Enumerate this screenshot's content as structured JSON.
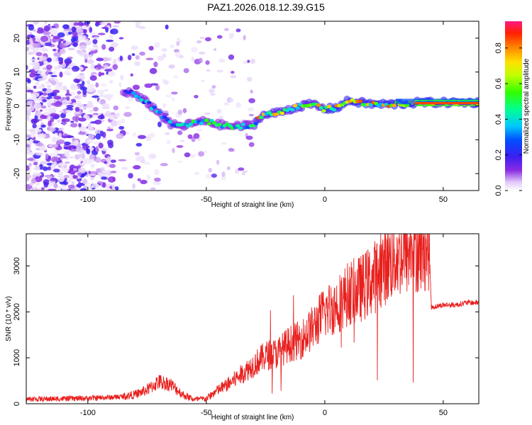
{
  "title": "PAZ1.2026.018.12.39.G15",
  "chart_data": [
    {
      "type": "heatmap",
      "title": "PAZ1.2026.018.12.39.G15",
      "xlabel": "Height of straight line (km)",
      "ylabel": "Frequency (Hz)",
      "xlim": [
        -126,
        65
      ],
      "ylim": [
        -25,
        25
      ],
      "xticks": [
        -100,
        -50,
        0,
        50
      ],
      "yticks": [
        -20,
        -10,
        0,
        10,
        20
      ],
      "colorbar": {
        "label": "Normalized spectral amplitude",
        "range": [
          0,
          0.95
        ],
        "ticks": [
          0.0,
          0.2,
          0.4,
          0.6,
          0.8
        ]
      },
      "ridge": {
        "description_points_km_hz": [
          [
            -82,
            4
          ],
          [
            -75,
            1
          ],
          [
            -70,
            -2
          ],
          [
            -65,
            -5.5
          ],
          [
            -60,
            -6
          ],
          [
            -55,
            -5
          ],
          [
            -50,
            -4.5
          ],
          [
            -45,
            -5.5
          ],
          [
            -40,
            -6
          ],
          [
            -35,
            -6
          ],
          [
            -30,
            -5.5
          ],
          [
            -27,
            -3
          ],
          [
            -20,
            -2
          ],
          [
            -15,
            -1
          ],
          [
            -10,
            0
          ],
          [
            -5,
            0.5
          ],
          [
            0,
            -1
          ],
          [
            5,
            -0.5
          ],
          [
            10,
            1.5
          ],
          [
            15,
            1
          ],
          [
            20,
            0.5
          ],
          [
            30,
            0.5
          ],
          [
            40,
            1
          ],
          [
            50,
            1
          ],
          [
            65,
            1
          ]
        ]
      }
    },
    {
      "type": "line",
      "xlabel": "Height of straight line (km)",
      "ylabel": "SNR (10 * v/v)",
      "xlim": [
        -126,
        65
      ],
      "ylim": [
        0,
        3700
      ],
      "xticks": [
        -100,
        -50,
        0,
        50
      ],
      "yticks": [
        0,
        1000,
        2000,
        3000
      ],
      "series": [
        {
          "name": "SNR",
          "color": "#e8201e",
          "x": [
            -126,
            -110,
            -100,
            -90,
            -85,
            -80,
            -75,
            -70,
            -65,
            -60,
            -55,
            -50,
            -45,
            -40,
            -35,
            -30,
            -25,
            -20,
            -15,
            -10,
            -5,
            0,
            5,
            10,
            15,
            20,
            25,
            30,
            35,
            40,
            44,
            45,
            50,
            55,
            60,
            65
          ],
          "values": [
            100,
            110,
            120,
            140,
            160,
            200,
            300,
            480,
            420,
            200,
            90,
            110,
            300,
            450,
            650,
            850,
            1050,
            1100,
            1300,
            1400,
            1650,
            2000,
            2150,
            2400,
            2500,
            2700,
            3000,
            3200,
            3300,
            3400,
            3450,
            2100,
            2150,
            2150,
            2200,
            2200
          ]
        }
      ]
    }
  ]
}
